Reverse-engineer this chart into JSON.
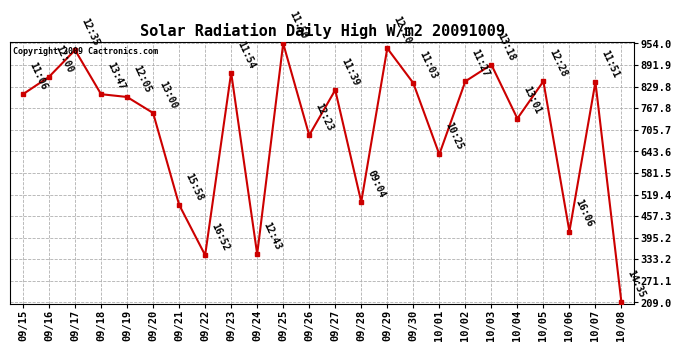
{
  "title": "Solar Radiation Daily High W/m2 20091009",
  "copyright": "Copyright 2009 Cactronics.com",
  "dates": [
    "09/15",
    "09/16",
    "09/17",
    "09/18",
    "09/19",
    "09/20",
    "09/21",
    "09/22",
    "09/23",
    "09/24",
    "09/25",
    "09/26",
    "09/27",
    "09/28",
    "09/29",
    "09/30",
    "10/01",
    "10/02",
    "10/03",
    "10/04",
    "10/05",
    "10/06",
    "10/07",
    "10/08"
  ],
  "values": [
    808,
    858,
    935,
    808,
    800,
    754,
    490,
    345,
    870,
    348,
    954,
    690,
    820,
    498,
    940,
    840,
    635,
    845,
    893,
    738,
    845,
    413,
    843,
    209
  ],
  "labels": [
    "11:06",
    "12:00",
    "12:35",
    "13:47",
    "12:05",
    "13:00",
    "15:58",
    "16:52",
    "11:54",
    "12:43",
    "11:50",
    "12:23",
    "11:39",
    "09:04",
    "12:20",
    "11:03",
    "10:25",
    "11:27",
    "13:18",
    "13:01",
    "12:28",
    "16:06",
    "11:51",
    "14:35"
  ],
  "line_color": "#cc0000",
  "marker_color": "#cc0000",
  "bg_color": "#ffffff",
  "grid_color": "#b0b0b0",
  "title_fontsize": 11,
  "label_fontsize": 7,
  "tick_fontsize": 7.5,
  "copyright_fontsize": 6,
  "ymin": 209.0,
  "ymax": 954.0,
  "ytick_labels": [
    "209.0",
    "271.1",
    "333.2",
    "395.2",
    "457.3",
    "519.4",
    "581.5",
    "643.6",
    "705.7",
    "767.8",
    "829.8",
    "891.9",
    "954.0"
  ],
  "ytick_values": [
    209.0,
    271.1,
    333.2,
    395.2,
    457.3,
    519.4,
    581.5,
    643.6,
    705.7,
    767.8,
    829.8,
    891.9,
    954.0
  ]
}
